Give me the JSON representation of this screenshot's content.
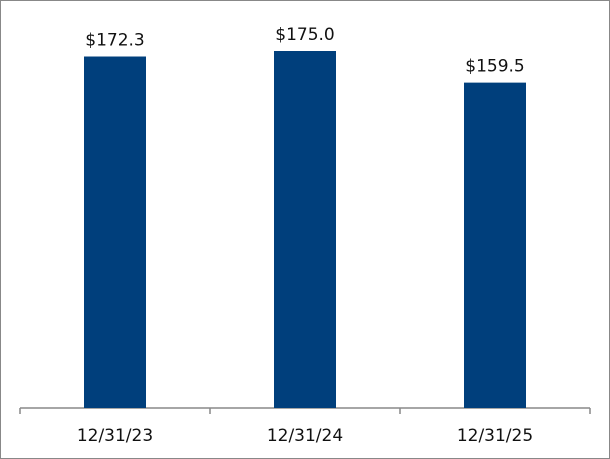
{
  "chart_data": {
    "type": "bar",
    "categories": [
      "12/31/23",
      "12/31/24",
      "12/31/25"
    ],
    "values": [
      172.3,
      175.0,
      159.5
    ],
    "value_labels": [
      "$172.3",
      "$175.0",
      "$159.5"
    ],
    "color": "#003f7c"
  }
}
